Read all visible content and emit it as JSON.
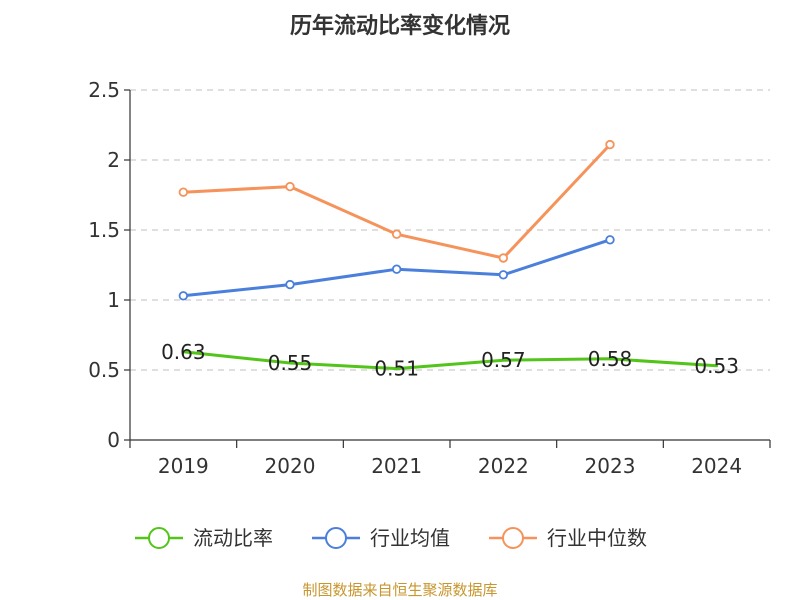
{
  "chart_data": {
    "type": "line",
    "title": "历年流动比率变化情况",
    "categories": [
      "2019",
      "2020",
      "2021",
      "2022",
      "2023",
      "2024"
    ],
    "ylim": [
      0,
      2.5
    ],
    "yticks": [
      "0",
      "0.5",
      "1",
      "1.5",
      "2",
      "2.5"
    ],
    "grid": true,
    "legend_position": "bottom",
    "series": [
      {
        "name": "流动比率",
        "color": "#52c41a",
        "values": [
          0.63,
          0.55,
          0.51,
          0.57,
          0.58,
          0.53
        ],
        "labels": [
          "0.63",
          "0.55",
          "0.51",
          "0.57",
          "0.58",
          "0.53"
        ],
        "markers": false
      },
      {
        "name": "行业均值",
        "color": "#4a7fdc",
        "values": [
          1.03,
          1.11,
          1.22,
          1.18,
          1.43,
          null
        ],
        "markers": true
      },
      {
        "name": "行业中位数",
        "color": "#f5935a",
        "values": [
          1.77,
          1.81,
          1.47,
          1.3,
          2.11,
          null
        ],
        "markers": true
      }
    ],
    "source": "制图数据来自恒生聚源数据库"
  }
}
